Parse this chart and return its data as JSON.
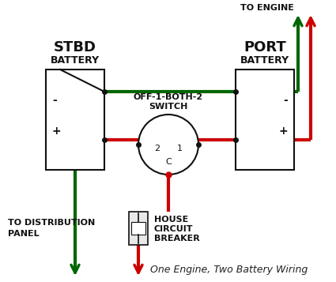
{
  "bg_color": "#ffffff",
  "title": "One Engine, Two Battery Wiring",
  "title_fontsize": 9,
  "title_color": "#222222",
  "stbd_label_line1": "STBD",
  "stbd_label_line2": "BATTERY",
  "port_label_line1": "PORT",
  "port_label_line2": "BATTERY",
  "engine_label": "TO ENGINE",
  "switch_label_line1": "OFF-1-BOTH-2",
  "switch_label_line2": "SWITCH",
  "dist_label_line1": "TO DISTRIBUTION",
  "dist_label_line2": "PANEL",
  "breaker_label_line1": "HOUSE",
  "breaker_label_line2": "CIRCUIT",
  "breaker_label_line3": "BREAKER",
  "red_color": "#cc0000",
  "green_color": "#006600",
  "dark_color": "#111111",
  "box_color": "#ffffff",
  "box_edge": "#333333",
  "wire_lw": 3.0,
  "arrow_hw": 0.018,
  "arrow_hl": 0.025
}
